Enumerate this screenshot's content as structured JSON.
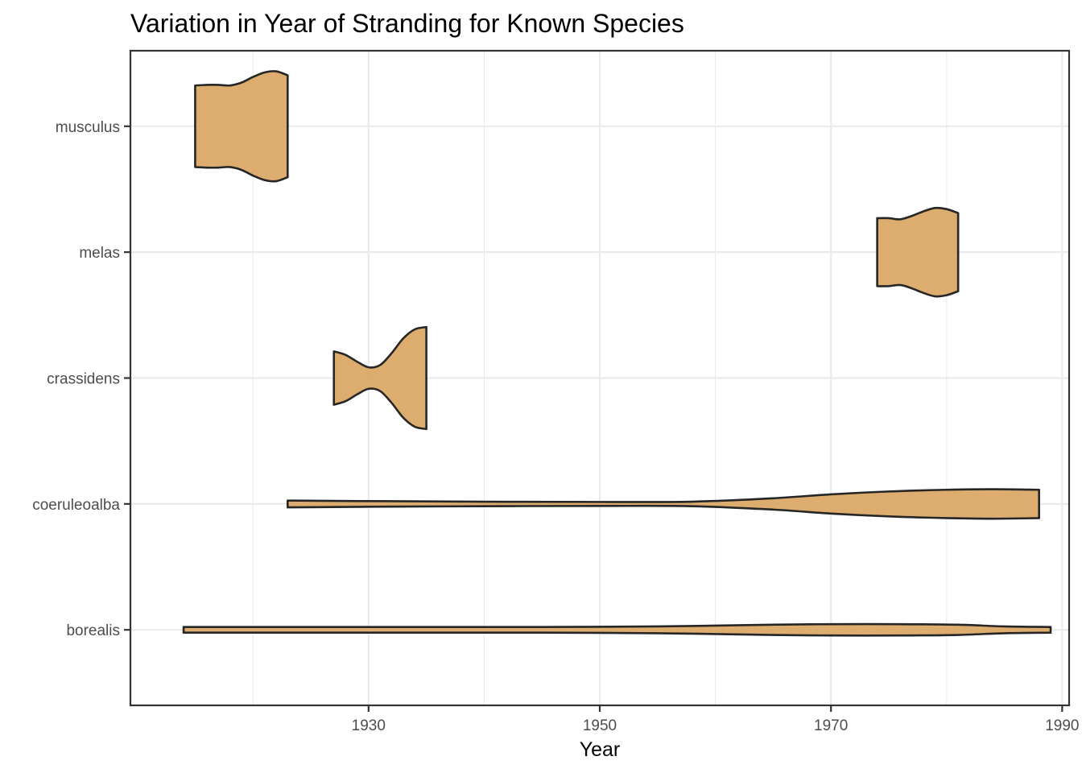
{
  "chart_data": {
    "type": "violin",
    "title": "Variation in Year of Stranding for Known Species",
    "xlabel": "Year",
    "ylabel": "",
    "xlim": [
      1909.4,
      1990.6
    ],
    "x_ticks": [
      1930,
      1950,
      1970,
      1990
    ],
    "x_minor_ticks": [
      1920,
      1940,
      1960,
      1980
    ],
    "grid": true,
    "fill_color": "#dba967",
    "outline_color": "#262626",
    "categories": [
      "borealis",
      "coeruleoalba",
      "crassidens",
      "melas",
      "musculus"
    ],
    "series": [
      {
        "category": "musculus",
        "min": 1915,
        "max": 1923,
        "density": [
          [
            1915,
            0.72
          ],
          [
            1916,
            0.73
          ],
          [
            1917,
            0.73
          ],
          [
            1918,
            0.72
          ],
          [
            1919,
            0.77
          ],
          [
            1920,
            0.87
          ],
          [
            1921,
            0.95
          ],
          [
            1922,
            0.97
          ],
          [
            1923,
            0.9
          ]
        ]
      },
      {
        "category": "melas",
        "min": 1974,
        "max": 1981,
        "density": [
          [
            1974,
            0.6
          ],
          [
            1975,
            0.6
          ],
          [
            1976,
            0.58
          ],
          [
            1977,
            0.64
          ],
          [
            1978,
            0.72
          ],
          [
            1979,
            0.78
          ],
          [
            1980,
            0.76
          ],
          [
            1981,
            0.69
          ]
        ]
      },
      {
        "category": "crassidens",
        "min": 1927,
        "max": 1935,
        "density": [
          [
            1927,
            0.47
          ],
          [
            1928,
            0.41
          ],
          [
            1929,
            0.29
          ],
          [
            1930,
            0.19
          ],
          [
            1931,
            0.23
          ],
          [
            1932,
            0.44
          ],
          [
            1933,
            0.7
          ],
          [
            1934,
            0.86
          ],
          [
            1935,
            0.9
          ]
        ]
      },
      {
        "category": "coeruleoalba",
        "min": 1923,
        "max": 1988,
        "density": [
          [
            1923,
            0.06
          ],
          [
            1930,
            0.05
          ],
          [
            1940,
            0.04
          ],
          [
            1950,
            0.035
          ],
          [
            1958,
            0.04
          ],
          [
            1965,
            0.1
          ],
          [
            1970,
            0.17
          ],
          [
            1975,
            0.22
          ],
          [
            1980,
            0.25
          ],
          [
            1984,
            0.26
          ],
          [
            1988,
            0.25
          ]
        ]
      },
      {
        "category": "borealis",
        "min": 1914,
        "max": 1989,
        "density": [
          [
            1914,
            0.05
          ],
          [
            1925,
            0.05
          ],
          [
            1935,
            0.05
          ],
          [
            1945,
            0.05
          ],
          [
            1955,
            0.06
          ],
          [
            1965,
            0.09
          ],
          [
            1970,
            0.1
          ],
          [
            1976,
            0.1
          ],
          [
            1981,
            0.09
          ],
          [
            1985,
            0.06
          ],
          [
            1989,
            0.05
          ]
        ]
      }
    ]
  }
}
